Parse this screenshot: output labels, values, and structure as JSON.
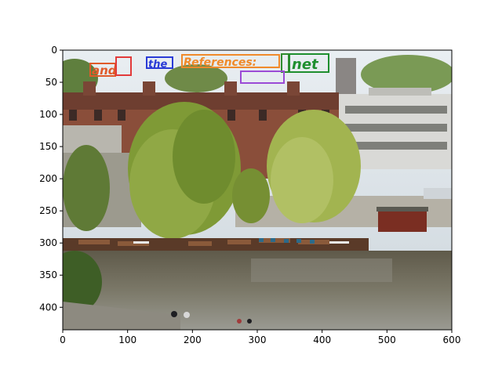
{
  "axes": {
    "x_ticks": [
      "0",
      "100",
      "200",
      "300",
      "400",
      "500",
      "600"
    ],
    "y_ticks": [
      "0",
      "50",
      "100",
      "150",
      "200",
      "250",
      "300",
      "350",
      "400"
    ],
    "xlim": [
      0,
      600
    ],
    "ylim": [
      435,
      0
    ]
  },
  "detections": [
    {
      "text": "and",
      "color": "#e05a2a"
    },
    {
      "text": "",
      "color": "#e23a3a"
    },
    {
      "text": "the",
      "color": "#2a3bd6"
    },
    {
      "text": "References:",
      "color": "#f08a2a"
    },
    {
      "text": "net",
      "color": "#1f8f2f"
    },
    {
      "text": "",
      "color": "#2e8b2e"
    },
    {
      "text": "",
      "color": "#9b4bd6"
    }
  ]
}
